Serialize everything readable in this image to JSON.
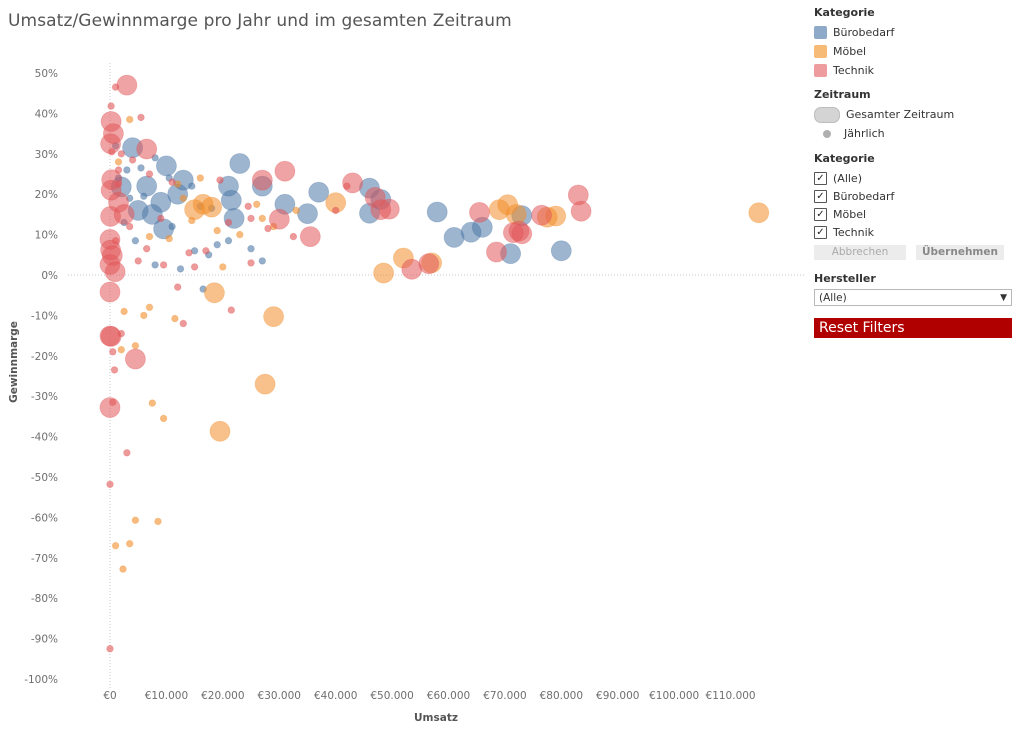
{
  "title": "Umsatz/Gewinnmarge pro Jahr und im gesamten Zeitraum",
  "legend": {
    "title": "Kategorie",
    "items": [
      {
        "label": "Bürobedarf",
        "color": "#4e79a7"
      },
      {
        "label": "Möbel",
        "color": "#f28e2b"
      },
      {
        "label": "Technik",
        "color": "#e15759"
      }
    ]
  },
  "period_filter": {
    "title": "Zeitraum",
    "options": [
      "Gesamter Zeitraum",
      "Jährlich"
    ],
    "selected": "Gesamter Zeitraum"
  },
  "category_filter": {
    "title": "Kategorie",
    "options": [
      "(Alle)",
      "Bürobedarf",
      "Möbel",
      "Technik"
    ],
    "checked": [
      true,
      true,
      true,
      true
    ],
    "cancel_label": "Abbrechen",
    "apply_label": "Übernehmen"
  },
  "manufacturer_filter": {
    "title": "Hersteller",
    "value": "(Alle)"
  },
  "reset_label": "Reset Filters",
  "chart_data": {
    "type": "scatter",
    "title": "Umsatz/Gewinnmarge pro Jahr und im gesamten Zeitraum",
    "xlabel": "Umsatz",
    "ylabel": "Gewinnmarge",
    "xlim": [
      0,
      110000
    ],
    "ylim": [
      -100,
      50
    ],
    "x_ticks": [
      "€0",
      "€10.000",
      "€20.000",
      "€30.000",
      "€40.000",
      "€50.000",
      "€60.000",
      "€70.000",
      "€80.000",
      "€90.000",
      "€100.000",
      "€110.000"
    ],
    "y_ticks": [
      "50%",
      "40%",
      "30%",
      "20%",
      "10%",
      "0%",
      "-10%",
      "-20%",
      "-30%",
      "-40%",
      "-50%",
      "-60%",
      "-70%",
      "-80%",
      "-90%",
      "-100%"
    ],
    "series": [
      {
        "name": "Bürobedarf",
        "color": "#4e79a7",
        "points": [
          [
            23000,
            27.6,
            "L"
          ],
          [
            27000,
            22,
            "L"
          ],
          [
            31000,
            17.5,
            "L"
          ],
          [
            35000,
            15.2,
            "L"
          ],
          [
            37000,
            20.5,
            "L"
          ],
          [
            46000,
            21.5,
            "L"
          ],
          [
            46000,
            15.3,
            "L"
          ],
          [
            48000,
            18.7,
            "L"
          ],
          [
            58000,
            15.6,
            "L"
          ],
          [
            61000,
            9.3,
            "L"
          ],
          [
            64000,
            10.6,
            "L"
          ],
          [
            66000,
            11.8,
            "L"
          ],
          [
            71000,
            5.3,
            "L"
          ],
          [
            73000,
            14.7,
            "L"
          ],
          [
            80000,
            6,
            "L"
          ],
          [
            4000,
            31.5,
            "L"
          ],
          [
            10000,
            27,
            "L"
          ],
          [
            13000,
            23.5,
            "L"
          ],
          [
            21000,
            22,
            "L"
          ],
          [
            21500,
            18.5,
            "L"
          ],
          [
            22000,
            14,
            "L"
          ],
          [
            9500,
            11.4,
            "L"
          ],
          [
            9000,
            18,
            "L"
          ],
          [
            2000,
            21.8,
            "L"
          ],
          [
            6500,
            22,
            "L"
          ],
          [
            12000,
            20,
            "L"
          ],
          [
            5000,
            16,
            "L"
          ],
          [
            7500,
            15,
            "L"
          ],
          [
            3000,
            26,
            "S"
          ],
          [
            5500,
            26.5,
            "S"
          ],
          [
            8000,
            29,
            "S"
          ],
          [
            10500,
            24,
            "S"
          ],
          [
            1500,
            24,
            "S"
          ],
          [
            3500,
            19,
            "S"
          ],
          [
            6000,
            19.5,
            "S"
          ],
          [
            14500,
            22,
            "S"
          ],
          [
            16000,
            17,
            "S"
          ],
          [
            18000,
            16.5,
            "S"
          ],
          [
            15000,
            6,
            "S"
          ],
          [
            17500,
            5,
            "S"
          ],
          [
            21000,
            8.5,
            "S"
          ],
          [
            25000,
            6.5,
            "S"
          ],
          [
            27000,
            3.5,
            "S"
          ],
          [
            12500,
            1.5,
            "S"
          ],
          [
            16500,
            -3.5,
            "S"
          ],
          [
            8000,
            2.5,
            "S"
          ],
          [
            2500,
            13,
            "S"
          ],
          [
            4500,
            8.5,
            "S"
          ],
          [
            11000,
            12,
            "S"
          ],
          [
            19000,
            7.5,
            "S"
          ],
          [
            1000,
            32,
            "S"
          ]
        ]
      },
      {
        "name": "Möbel",
        "color": "#f28e2b",
        "points": [
          [
            115000,
            15.4,
            "L"
          ],
          [
            70500,
            17.4,
            "L"
          ],
          [
            69000,
            16.2,
            "L"
          ],
          [
            72000,
            15,
            "L"
          ],
          [
            79000,
            14.6,
            "L"
          ],
          [
            77500,
            14.3,
            "L"
          ],
          [
            40000,
            17.9,
            "L"
          ],
          [
            52000,
            4.2,
            "L"
          ],
          [
            48500,
            0.5,
            "L"
          ],
          [
            57000,
            3,
            "L"
          ],
          [
            18500,
            -4.4,
            "L"
          ],
          [
            29000,
            -10.3,
            "L"
          ],
          [
            27500,
            -27,
            "L"
          ],
          [
            19500,
            -38.7,
            "L"
          ],
          [
            18000,
            16.8,
            "L"
          ],
          [
            16500,
            17.5,
            "L"
          ],
          [
            15000,
            16.2,
            "L"
          ],
          [
            12000,
            22.5,
            "S"
          ],
          [
            13000,
            19,
            "S"
          ],
          [
            14500,
            13.5,
            "S"
          ],
          [
            19000,
            11,
            "S"
          ],
          [
            23000,
            10,
            "S"
          ],
          [
            10500,
            9,
            "S"
          ],
          [
            7000,
            9.5,
            "S"
          ],
          [
            11500,
            -10.8,
            "S"
          ],
          [
            6000,
            -10,
            "S"
          ],
          [
            7000,
            -8,
            "S"
          ],
          [
            2500,
            -9,
            "S"
          ],
          [
            4500,
            -17.5,
            "S"
          ],
          [
            2000,
            -18.5,
            "S"
          ],
          [
            7500,
            -31.7,
            "S"
          ],
          [
            9500,
            -35.5,
            "S"
          ],
          [
            4500,
            -60.7,
            "S"
          ],
          [
            8500,
            -61,
            "S"
          ],
          [
            3500,
            -66.5,
            "S"
          ],
          [
            1000,
            -67,
            "S"
          ],
          [
            2300,
            -72.8,
            "S"
          ],
          [
            16000,
            24,
            "S"
          ],
          [
            27000,
            14,
            "S"
          ],
          [
            29000,
            12,
            "S"
          ],
          [
            33000,
            16,
            "S"
          ],
          [
            3500,
            38.5,
            "S"
          ],
          [
            1500,
            28,
            "S"
          ],
          [
            20000,
            2,
            "S"
          ],
          [
            26000,
            17.5,
            "S"
          ]
        ]
      },
      {
        "name": "Technik",
        "color": "#e15759",
        "points": [
          [
            3000,
            47,
            "L"
          ],
          [
            200,
            38,
            "L"
          ],
          [
            600,
            35,
            "L"
          ],
          [
            100,
            32.5,
            "L"
          ],
          [
            6500,
            31.2,
            "L"
          ],
          [
            27000,
            23.5,
            "L"
          ],
          [
            31000,
            25.7,
            "L"
          ],
          [
            43000,
            22.8,
            "L"
          ],
          [
            47000,
            19.2,
            "L"
          ],
          [
            48000,
            16.2,
            "L"
          ],
          [
            49500,
            16.3,
            "L"
          ],
          [
            30000,
            13.8,
            "L"
          ],
          [
            35500,
            9.5,
            "L"
          ],
          [
            65500,
            15.5,
            "L"
          ],
          [
            71500,
            10.5,
            "L"
          ],
          [
            72500,
            10.9,
            "L"
          ],
          [
            73000,
            10.2,
            "L"
          ],
          [
            76500,
            14.8,
            "L"
          ],
          [
            83000,
            19.8,
            "L"
          ],
          [
            83500,
            15.8,
            "L"
          ],
          [
            68500,
            5.7,
            "L"
          ],
          [
            53500,
            1.4,
            "L"
          ],
          [
            56500,
            2.8,
            "L"
          ],
          [
            300,
            23.6,
            "L"
          ],
          [
            200,
            21,
            "L"
          ],
          [
            100,
            14.5,
            "L"
          ],
          [
            0,
            8.8,
            "L"
          ],
          [
            100,
            6.2,
            "L"
          ],
          [
            400,
            4.8,
            "L"
          ],
          [
            0,
            2.6,
            "L"
          ],
          [
            900,
            0.8,
            "L"
          ],
          [
            0,
            -4.2,
            "L"
          ],
          [
            0,
            -15.1,
            "L"
          ],
          [
            200,
            -15.2,
            "L"
          ],
          [
            4500,
            -20.8,
            "L"
          ],
          [
            0,
            -32.8,
            "L"
          ],
          [
            1500,
            18,
            "L"
          ],
          [
            2500,
            15,
            "L"
          ],
          [
            1000,
            46.5,
            "S"
          ],
          [
            5500,
            39,
            "S"
          ],
          [
            2000,
            30,
            "S"
          ],
          [
            4000,
            28.5,
            "S"
          ],
          [
            1500,
            26,
            "S"
          ],
          [
            7000,
            25,
            "S"
          ],
          [
            11000,
            23,
            "S"
          ],
          [
            19500,
            23.5,
            "S"
          ],
          [
            21000,
            13,
            "S"
          ],
          [
            24500,
            17,
            "S"
          ],
          [
            25000,
            14,
            "S"
          ],
          [
            28000,
            11.5,
            "S"
          ],
          [
            32500,
            9.5,
            "S"
          ],
          [
            40000,
            16,
            "S"
          ],
          [
            9000,
            14,
            "S"
          ],
          [
            14000,
            5.5,
            "S"
          ],
          [
            17000,
            6,
            "S"
          ],
          [
            15000,
            2,
            "S"
          ],
          [
            12000,
            -3,
            "S"
          ],
          [
            21500,
            -8.7,
            "S"
          ],
          [
            13000,
            -12,
            "S"
          ],
          [
            2000,
            -14.5,
            "S"
          ],
          [
            500,
            -19,
            "S"
          ],
          [
            800,
            -23.5,
            "S"
          ],
          [
            3000,
            -44,
            "S"
          ],
          [
            0,
            -51.8,
            "S"
          ],
          [
            0,
            -92.5,
            "S"
          ],
          [
            1000,
            8.5,
            "S"
          ],
          [
            3500,
            12,
            "S"
          ],
          [
            6500,
            6.5,
            "S"
          ],
          [
            9500,
            2.5,
            "S"
          ],
          [
            300,
            30.5,
            "S"
          ],
          [
            200,
            41.8,
            "S"
          ],
          [
            42000,
            22,
            "S"
          ],
          [
            25000,
            3,
            "S"
          ],
          [
            500,
            -31.5,
            "S"
          ],
          [
            5000,
            3.5,
            "S"
          ],
          [
            1500,
            22.5,
            "S"
          ]
        ]
      }
    ]
  }
}
